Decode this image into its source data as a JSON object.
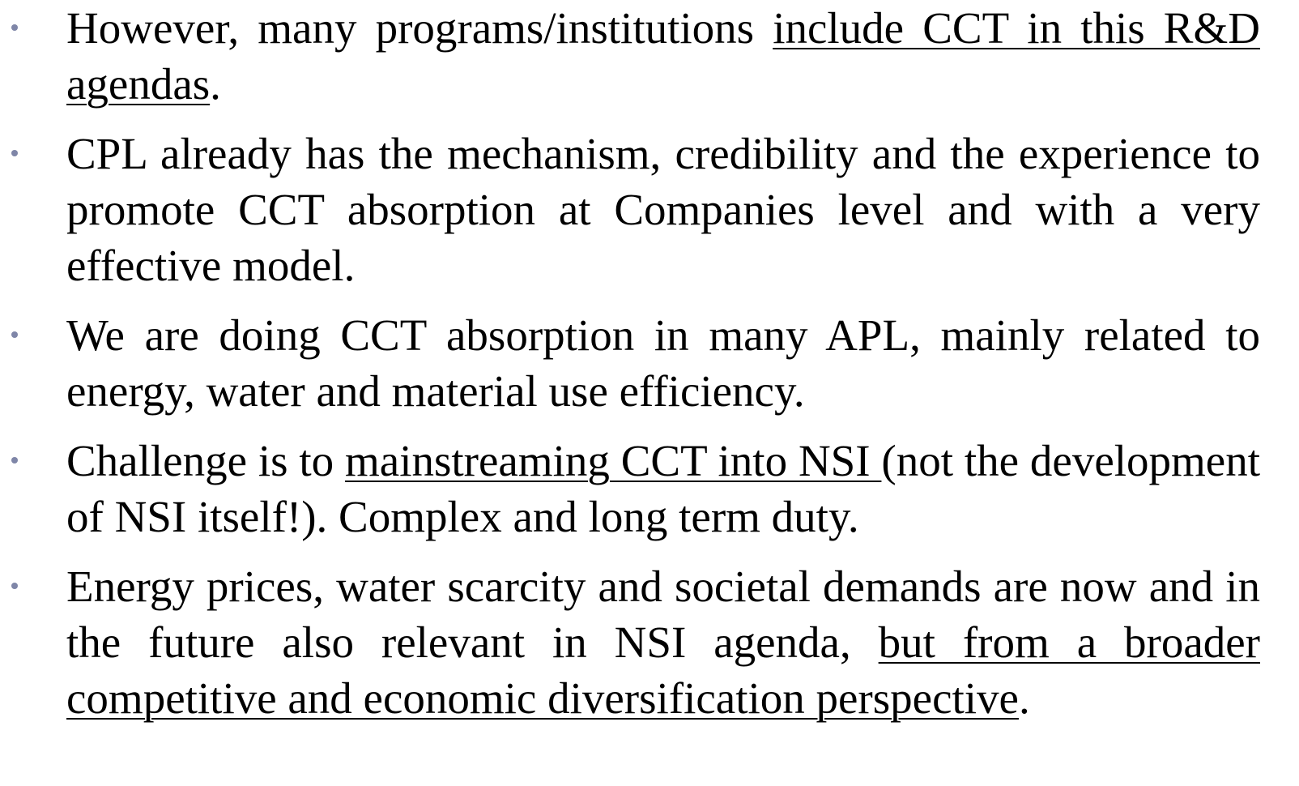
{
  "bullets": [
    {
      "segments": [
        {
          "text": "However, many programs/institutions ",
          "underline": false
        },
        {
          "text": "include CCT in this R&D agendas",
          "underline": true
        },
        {
          "text": ".",
          "underline": false
        }
      ]
    },
    {
      "segments": [
        {
          "text": "CPL already has the mechanism, credibility and the experience to promote CCT absorption at Companies level and with a very effective model.",
          "underline": false
        }
      ]
    },
    {
      "segments": [
        {
          "text": "We are doing CCT absorption in many APL, mainly related to energy, water and material use efficiency.",
          "underline": false
        }
      ]
    },
    {
      "segments": [
        {
          "text": "Challenge is to ",
          "underline": false
        },
        {
          "text": "mainstreaming CCT into NSI ",
          "underline": true
        },
        {
          "text": "(not the development of NSI itself!). Complex and long term duty.",
          "underline": false
        }
      ]
    },
    {
      "segments": [
        {
          "text": "Energy prices, water scarcity and societal demands are now and in the future also relevant in NSI agenda, ",
          "underline": false
        },
        {
          "text": "but from a broader competitive and economic diversification perspective",
          "underline": true
        },
        {
          "text": ".",
          "underline": false
        }
      ]
    }
  ]
}
